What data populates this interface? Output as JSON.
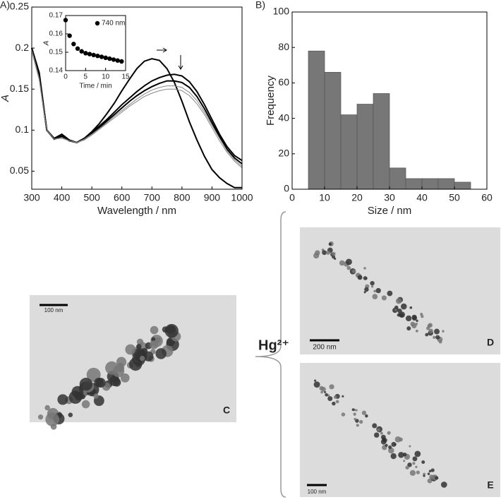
{
  "chart_data": [
    {
      "type": "line",
      "label": "A)",
      "xlabel": "Wavelength / nm",
      "ylabel": "A",
      "x": [
        300,
        325,
        350,
        375,
        400,
        425,
        450,
        475,
        500,
        525,
        550,
        575,
        600,
        625,
        650,
        675,
        700,
        725,
        750,
        775,
        800,
        825,
        850,
        875,
        900,
        925,
        950,
        975,
        1000
      ],
      "series": [
        {
          "color": "#000000",
          "values": [
            0.2,
            0.17,
            0.1,
            0.09,
            0.095,
            0.088,
            0.085,
            0.09,
            0.098,
            0.108,
            0.12,
            0.133,
            0.148,
            0.162,
            0.175,
            0.184,
            0.187,
            0.185,
            0.175,
            0.158,
            0.135,
            0.11,
            0.088,
            0.068,
            0.052,
            0.042,
            0.035,
            0.03,
            0.03
          ]
        },
        {
          "color": "#000000",
          "values": [
            0.2,
            0.168,
            0.1,
            0.089,
            0.093,
            0.087,
            0.085,
            0.09,
            0.097,
            0.105,
            0.113,
            0.122,
            0.131,
            0.139,
            0.147,
            0.154,
            0.16,
            0.164,
            0.167,
            0.168,
            0.166,
            0.159,
            0.147,
            0.131,
            0.113,
            0.095,
            0.08,
            0.069,
            0.063
          ]
        },
        {
          "color": "#000000",
          "values": [
            0.2,
            0.165,
            0.1,
            0.089,
            0.092,
            0.087,
            0.085,
            0.089,
            0.096,
            0.103,
            0.111,
            0.119,
            0.127,
            0.135,
            0.142,
            0.148,
            0.153,
            0.157,
            0.16,
            0.16,
            0.158,
            0.152,
            0.141,
            0.126,
            0.109,
            0.092,
            0.077,
            0.066,
            0.059
          ]
        },
        {
          "color": "#888888",
          "values": [
            0.198,
            0.163,
            0.1,
            0.089,
            0.091,
            0.087,
            0.085,
            0.089,
            0.095,
            0.102,
            0.109,
            0.117,
            0.124,
            0.131,
            0.138,
            0.144,
            0.149,
            0.152,
            0.154,
            0.154,
            0.152,
            0.146,
            0.136,
            0.122,
            0.106,
            0.09,
            0.075,
            0.064,
            0.056
          ]
        },
        {
          "color": "#888888",
          "values": [
            0.196,
            0.161,
            0.1,
            0.089,
            0.09,
            0.087,
            0.085,
            0.088,
            0.094,
            0.101,
            0.108,
            0.115,
            0.122,
            0.129,
            0.135,
            0.141,
            0.145,
            0.148,
            0.15,
            0.15,
            0.148,
            0.142,
            0.132,
            0.119,
            0.103,
            0.087,
            0.073,
            0.062,
            0.054
          ]
        }
      ],
      "xlim": [
        300,
        1000
      ],
      "ylim": [
        0.028,
        0.25
      ],
      "xticks": [
        300,
        400,
        500,
        600,
        700,
        800,
        900,
        1000
      ],
      "yticks": [
        0.05,
        0.1,
        0.15,
        0.2,
        0.25
      ]
    },
    {
      "type": "scatter",
      "xlabel": "Time / min",
      "ylabel": "A",
      "x": [
        0,
        1,
        2,
        3,
        4,
        5,
        6,
        7,
        8,
        9,
        10,
        11,
        12,
        13,
        14
      ],
      "series": [
        {
          "name": "740 nm",
          "color": "#000000",
          "values": [
            0.1675,
            0.159,
            0.1545,
            0.152,
            0.1505,
            0.1495,
            0.149,
            0.1485,
            0.148,
            0.1475,
            0.147,
            0.1465,
            0.146,
            0.1455,
            0.145
          ]
        }
      ],
      "xlim": [
        0,
        15
      ],
      "ylim": [
        0.14,
        0.17
      ],
      "xticks": [
        0,
        5,
        10,
        15
      ],
      "yticks": [
        0.14,
        0.15,
        0.16,
        0.17
      ]
    },
    {
      "type": "histogram",
      "label": "B)",
      "xlabel": "Size / nm",
      "ylabel": "Frequency",
      "bins": [
        5,
        10,
        15,
        20,
        25,
        30,
        35,
        40,
        45,
        50,
        55
      ],
      "values": [
        78,
        66,
        42,
        48,
        54,
        12,
        6,
        6,
        6,
        4
      ],
      "color": "#777777",
      "xlim": [
        0,
        60
      ],
      "ylim": [
        0,
        100
      ],
      "xticks": [
        0,
        10,
        20,
        30,
        40,
        50,
        60
      ],
      "yticks": [
        0,
        20,
        40,
        60,
        80,
        100
      ]
    }
  ],
  "reagent": "Hg²⁺",
  "images": [
    {
      "label": "C",
      "scale_bar": "100 nm"
    },
    {
      "label": "D",
      "scale_bar": "200 nm"
    },
    {
      "label": "E",
      "scale_bar": "100 nm"
    }
  ]
}
